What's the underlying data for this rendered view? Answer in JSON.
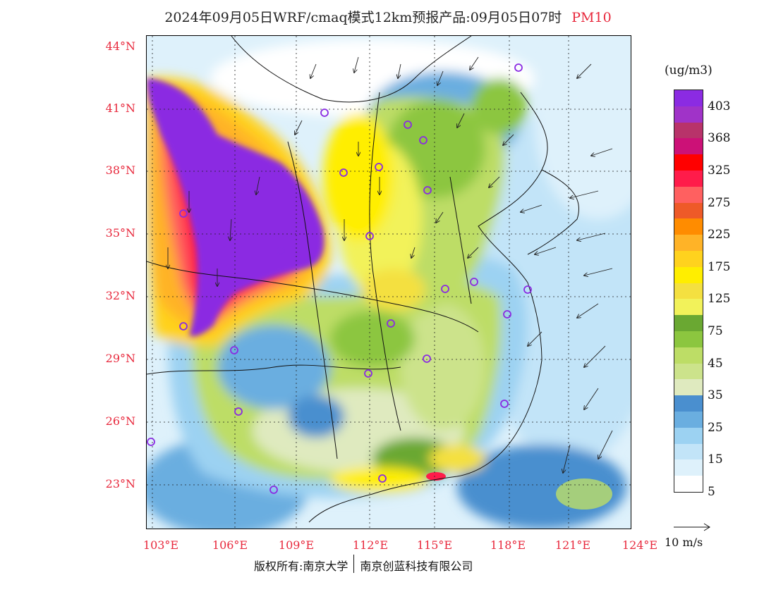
{
  "title": {
    "main": "2024年09月05日WRF/cmaq模式12km预报产品:09月05日07时",
    "species": "PM10"
  },
  "map": {
    "lat_labels": [
      "44°N",
      "41°N",
      "38°N",
      "35°N",
      "32°N",
      "29°N",
      "26°N",
      "23°N"
    ],
    "lon_labels": [
      "103°E",
      "106°E",
      "109°E",
      "112°E",
      "115°E",
      "118°E",
      "121°E",
      "124°E"
    ],
    "lat_range": [
      21,
      44.5
    ],
    "lon_range": [
      102.8,
      124
    ],
    "label_color": "#e8283c",
    "city_marker_color": "#8a2be2"
  },
  "colorbar": {
    "unit": "(ug/m3)",
    "labels": [
      "403",
      "368",
      "325",
      "275",
      "225",
      "175",
      "125",
      "75",
      "45",
      "35",
      "25",
      "15",
      "5"
    ],
    "colors": [
      "#8b2be2",
      "#a033c8",
      "#b8336a",
      "#cc1177",
      "#ff0000",
      "#ff1c4a",
      "#ff6060",
      "#ee5a28",
      "#ff8c00",
      "#ffb327",
      "#ffd21e",
      "#ffee00",
      "#f4e040",
      "#f2f25a",
      "#6aa832",
      "#8cc63f",
      "#bddd66",
      "#cce38b",
      "#dfeabf",
      "#4a8fcf",
      "#6aaee0",
      "#9cd2f2",
      "#c2e4f8",
      "#def1fb",
      "#ffffff"
    ]
  },
  "vector_legend": {
    "label": "10 m/s"
  },
  "footer": {
    "copyright_left": "版权所有:南京大学",
    "copyright_right": "南京创蓝科技有限公司"
  }
}
